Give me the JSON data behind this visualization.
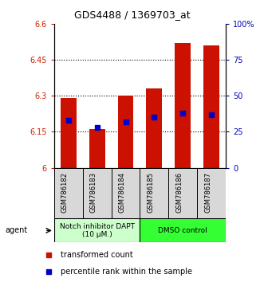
{
  "title": "GDS4488 / 1369703_at",
  "samples": [
    "GSM786182",
    "GSM786183",
    "GSM786184",
    "GSM786185",
    "GSM786186",
    "GSM786187"
  ],
  "bar_values": [
    6.29,
    6.16,
    6.3,
    6.33,
    6.52,
    6.51
  ],
  "bar_bottom": 6.0,
  "percentile_values": [
    33,
    28,
    32,
    35,
    38,
    37
  ],
  "ylim_left": [
    6.0,
    6.6
  ],
  "ylim_right": [
    0,
    100
  ],
  "yticks_left": [
    6.0,
    6.15,
    6.3,
    6.45,
    6.6
  ],
  "yticks_right": [
    0,
    25,
    50,
    75,
    100
  ],
  "ytick_labels_left": [
    "6",
    "6.15",
    "6.3",
    "6.45",
    "6.6"
  ],
  "ytick_labels_right": [
    "0",
    "25",
    "50",
    "75",
    "100%"
  ],
  "bar_color": "#cc1100",
  "dot_color": "#0000cc",
  "group1_label": "Notch inhibitor DAPT\n(10 μM.)",
  "group2_label": "DMSO control",
  "group1_color": "#ccffcc",
  "group2_color": "#33ff33",
  "legend_bar_label": "transformed count",
  "legend_dot_label": "percentile rank within the sample",
  "agent_label": "agent",
  "gridline_ticks": [
    6.15,
    6.3,
    6.45
  ]
}
